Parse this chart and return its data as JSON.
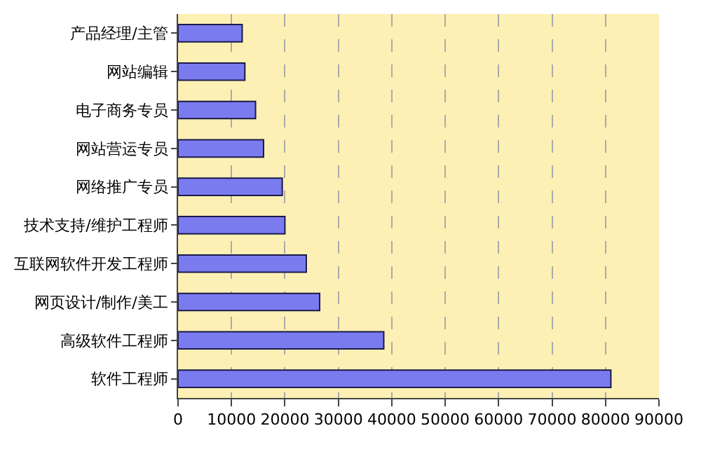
{
  "chart_data": {
    "type": "bar",
    "orientation": "horizontal",
    "categories": [
      "产品经理/主管",
      "网站编辑",
      "电子商务专员",
      "网站营运专员",
      "网络推广专员",
      "技术支持/维护工程师",
      "互联网软件开发工程师",
      "网页设计/制作/美工",
      "高级软件工程师",
      "软件工程师"
    ],
    "values": [
      12000,
      12500,
      14500,
      16000,
      19500,
      20000,
      24000,
      26500,
      38500,
      81000
    ],
    "color": "#7b7bf0",
    "xlim": [
      0,
      90000
    ],
    "xticks": [
      0,
      10000,
      20000,
      30000,
      40000,
      50000,
      60000,
      70000,
      80000,
      90000
    ],
    "grid": "x",
    "legend": false
  }
}
